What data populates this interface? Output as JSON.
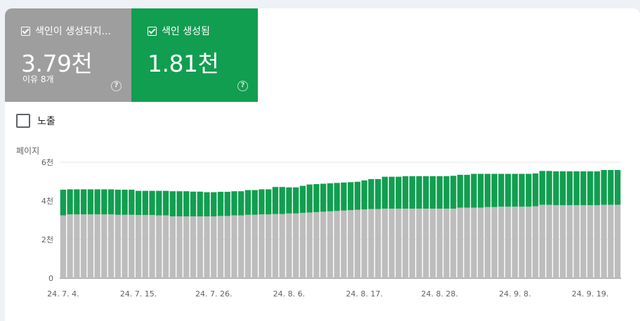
{
  "tiles": {
    "not_indexed": {
      "label": "색인이 생성되지...",
      "value": "3.79천",
      "sub": "이유 8개",
      "color": "#9e9e9e"
    },
    "indexed": {
      "label": "색인 생성됨",
      "value": "1.81천",
      "color": "#119e50"
    }
  },
  "impressions": {
    "label": "노출"
  },
  "chart_data": {
    "type": "bar",
    "stacked": true,
    "ylabel": "페이지",
    "ylim": [
      0,
      6000
    ],
    "yticks": [
      "0",
      "2천",
      "4천",
      "6천"
    ],
    "xtick_labels": [
      "24. 7. 4.",
      "24. 7. 15.",
      "24. 7. 26.",
      "24. 8. 6.",
      "24. 8. 17.",
      "24. 8. 28.",
      "24. 9. 8.",
      "24. 9. 19."
    ],
    "series": [
      {
        "color": "#bdbdbd",
        "values": [
          3250,
          3300,
          3300,
          3300,
          3300,
          3300,
          3300,
          3300,
          3280,
          3280,
          3280,
          3270,
          3270,
          3270,
          3250,
          3250,
          3200,
          3200,
          3200,
          3200,
          3200,
          3200,
          3200,
          3220,
          3220,
          3250,
          3250,
          3280,
          3280,
          3300,
          3300,
          3320,
          3320,
          3350,
          3350,
          3380,
          3400,
          3420,
          3440,
          3460,
          3480,
          3500,
          3520,
          3540,
          3560,
          3580,
          3580,
          3600,
          3600,
          3600,
          3600,
          3600,
          3600,
          3600,
          3600,
          3600,
          3600,
          3600,
          3650,
          3650,
          3650,
          3650,
          3680,
          3680,
          3700,
          3700,
          3700,
          3700,
          3700,
          3720,
          3800,
          3800,
          3780,
          3780,
          3780,
          3780,
          3780,
          3780,
          3780,
          3800,
          3800,
          3800
        ]
      },
      {
        "color": "#119e50",
        "values": [
          1330,
          1300,
          1300,
          1300,
          1300,
          1300,
          1300,
          1300,
          1300,
          1300,
          1300,
          1250,
          1250,
          1250,
          1270,
          1270,
          1300,
          1300,
          1300,
          1280,
          1280,
          1250,
          1250,
          1250,
          1250,
          1250,
          1250,
          1280,
          1280,
          1300,
          1300,
          1400,
          1400,
          1350,
          1350,
          1400,
          1450,
          1450,
          1450,
          1450,
          1450,
          1450,
          1450,
          1450,
          1500,
          1550,
          1550,
          1650,
          1650,
          1650,
          1680,
          1680,
          1680,
          1680,
          1680,
          1680,
          1680,
          1700,
          1700,
          1700,
          1750,
          1750,
          1720,
          1720,
          1700,
          1700,
          1700,
          1700,
          1700,
          1700,
          1750,
          1750,
          1750,
          1750,
          1750,
          1750,
          1750,
          1750,
          1750,
          1800,
          1800,
          1800
        ]
      }
    ]
  }
}
